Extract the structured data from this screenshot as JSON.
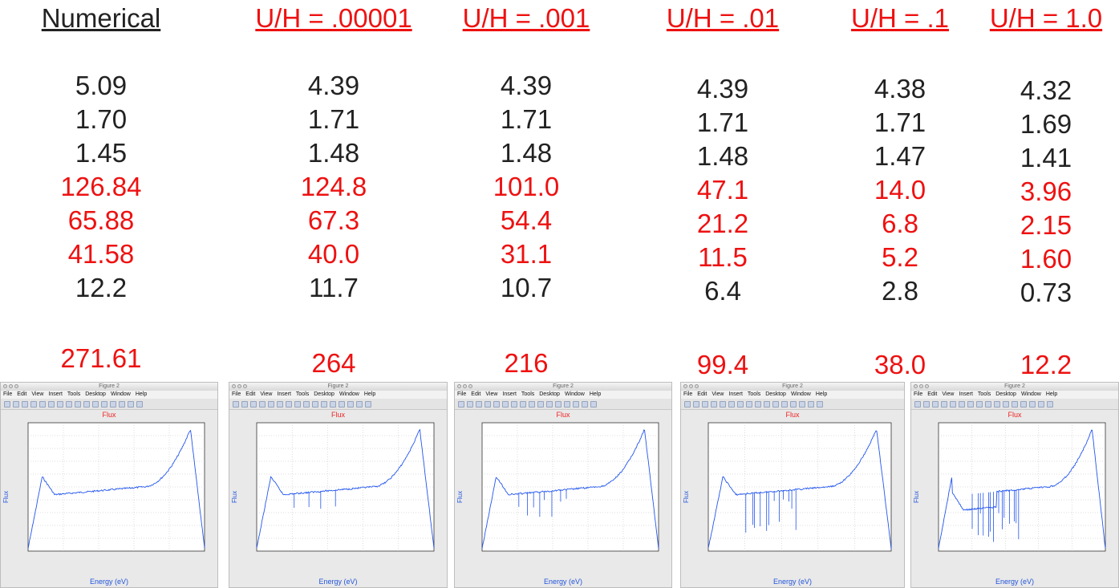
{
  "columns": [
    {
      "header": "Numerical",
      "header_color": "#222222",
      "values": [
        {
          "text": "5.09",
          "color": "black"
        },
        {
          "text": "1.70",
          "color": "black"
        },
        {
          "text": "1.45",
          "color": "black"
        },
        {
          "text": "126.84",
          "color": "red"
        },
        {
          "text": "65.88",
          "color": "red"
        },
        {
          "text": "41.58",
          "color": "red"
        },
        {
          "text": "12.2",
          "color": "black"
        }
      ],
      "total": "271.61"
    },
    {
      "header": "U/H = .00001",
      "header_color": "#ee1111",
      "values": [
        {
          "text": "4.39",
          "color": "black"
        },
        {
          "text": "1.71",
          "color": "black"
        },
        {
          "text": "1.48",
          "color": "black"
        },
        {
          "text": "124.8",
          "color": "red"
        },
        {
          "text": "67.3",
          "color": "red"
        },
        {
          "text": "40.0",
          "color": "red"
        },
        {
          "text": "11.7",
          "color": "black"
        }
      ],
      "total": "264"
    },
    {
      "header": "U/H = .001",
      "header_color": "#ee1111",
      "values": [
        {
          "text": "4.39",
          "color": "black"
        },
        {
          "text": "1.71",
          "color": "black"
        },
        {
          "text": "1.48",
          "color": "black"
        },
        {
          "text": "101.0",
          "color": "red"
        },
        {
          "text": "54.4",
          "color": "red"
        },
        {
          "text": "31.1",
          "color": "red"
        },
        {
          "text": "10.7",
          "color": "black"
        }
      ],
      "total": "216"
    },
    {
      "header": "U/H = .01",
      "header_color": "#ee1111",
      "values": [
        {
          "text": "4.39",
          "color": "black"
        },
        {
          "text": "1.71",
          "color": "black"
        },
        {
          "text": "1.48",
          "color": "black"
        },
        {
          "text": "47.1",
          "color": "red"
        },
        {
          "text": "21.2",
          "color": "red"
        },
        {
          "text": "11.5",
          "color": "red"
        },
        {
          "text": "6.4",
          "color": "black"
        }
      ],
      "total": "99.4"
    },
    {
      "header": "U/H = .1",
      "header_color": "#ee1111",
      "values": [
        {
          "text": "4.38",
          "color": "black"
        },
        {
          "text": "1.71",
          "color": "black"
        },
        {
          "text": "1.47",
          "color": "black"
        },
        {
          "text": "14.0",
          "color": "red"
        },
        {
          "text": "6.8",
          "color": "red"
        },
        {
          "text": "5.2",
          "color": "red"
        },
        {
          "text": "2.8",
          "color": "black"
        }
      ],
      "total": "38.0"
    },
    {
      "header": "U/H = 1.0",
      "header_color": "#ee1111",
      "values": [
        {
          "text": "4.32",
          "color": "black"
        },
        {
          "text": "1.69",
          "color": "black"
        },
        {
          "text": "1.41",
          "color": "black"
        },
        {
          "text": "3.96",
          "color": "red"
        },
        {
          "text": "2.15",
          "color": "red"
        },
        {
          "text": "1.60",
          "color": "red"
        },
        {
          "text": "0.73",
          "color": "black"
        }
      ],
      "total": "12.2"
    }
  ],
  "figure_window": {
    "window_title": "Figure 2",
    "menu": [
      "File",
      "Edit",
      "View",
      "Insert",
      "Tools",
      "Desktop",
      "Window",
      "Help"
    ],
    "plot_title": "Flux",
    "xlabel": "Energy (eV)",
    "ylabel": "Flux",
    "curve_color": "#2255ee",
    "title_color": "#ee2222"
  },
  "figures": [
    {
      "dips": 0
    },
    {
      "dips": 4
    },
    {
      "dips": 8
    },
    {
      "dips": 12
    },
    {
      "dips": 14
    }
  ]
}
